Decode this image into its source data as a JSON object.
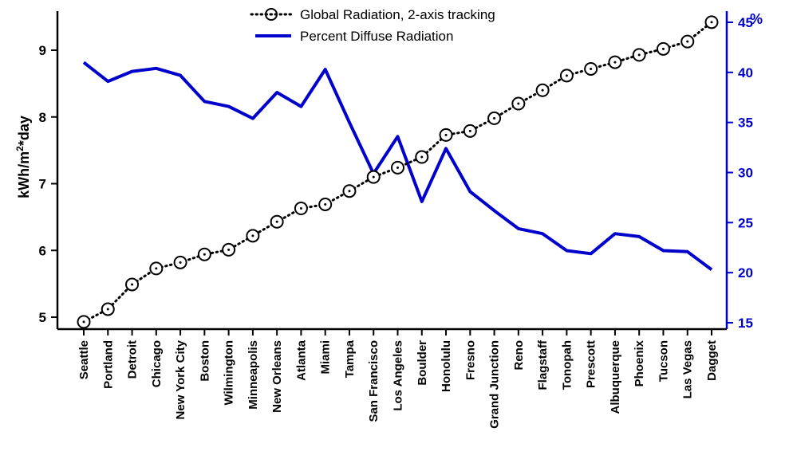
{
  "chart_data": {
    "type": "line",
    "categories": [
      "Seattle",
      "Portland",
      "Detroit",
      "Chicago",
      "New York City",
      "Boston",
      "Wilmington",
      "Minneapolis",
      "New Orleans",
      "Atlanta",
      "Miami",
      "Tampa",
      "San Francisco",
      "Los Angeles",
      "Boulder",
      "Honolulu",
      "Fresno",
      "Grand Junction",
      "Reno",
      "Flagstaff",
      "Tonopah",
      "Prescott",
      "Albuquerque",
      "Phoenix",
      "Tucson",
      "Las Vegas",
      "Dagget"
    ],
    "series": [
      {
        "name": "Global Radiation, 2-axis tracking",
        "axis": "left",
        "color": "#000000",
        "style": "dotted-circle-markers",
        "values": [
          4.93,
          5.12,
          5.49,
          5.73,
          5.82,
          5.94,
          6.01,
          6.22,
          6.43,
          6.63,
          6.69,
          6.89,
          7.1,
          7.24,
          7.4,
          7.73,
          7.79,
          7.98,
          8.2,
          8.4,
          8.62,
          8.72,
          8.82,
          8.93,
          9.02,
          9.13,
          9.42
        ]
      },
      {
        "name": "Percent Diffuse Radiation",
        "axis": "right",
        "color": "#0000cc",
        "style": "solid",
        "values": [
          41.0,
          39.1,
          40.1,
          40.4,
          39.7,
          37.1,
          36.6,
          35.4,
          38.0,
          36.6,
          40.3,
          35.0,
          29.9,
          33.6,
          27.1,
          32.4,
          28.1,
          26.2,
          24.4,
          23.9,
          22.2,
          21.9,
          23.9,
          23.6,
          22.2,
          22.1,
          20.3
        ]
      }
    ],
    "title": "",
    "xlabel": "",
    "ylabel": "kWh/m^2*day",
    "y2label": "%",
    "ylim": [
      4.8,
      9.5
    ],
    "y2lim": [
      14.5,
      45.5
    ],
    "yticks": [
      5,
      6,
      7,
      8,
      9
    ],
    "y2ticks": [
      15,
      20,
      25,
      30,
      35,
      40,
      45
    ],
    "grid": false,
    "legend": "top-center"
  }
}
